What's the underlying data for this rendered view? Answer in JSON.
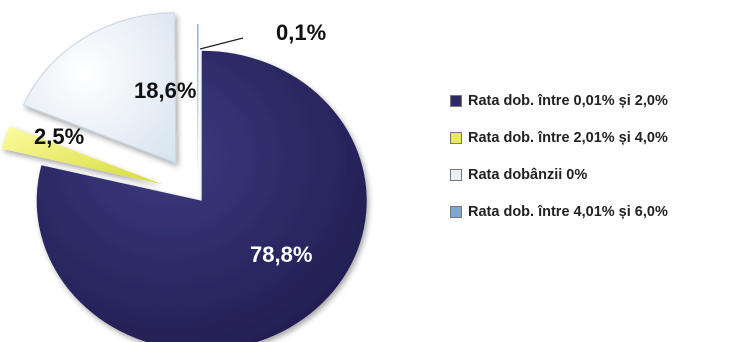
{
  "chart_data": {
    "type": "pie",
    "style": "3d-exploded",
    "slices": [
      {
        "label": "Rata dob. între 0,01% și 2,0%",
        "value": 78.8,
        "display": "78,8%",
        "color": "#2e2a66"
      },
      {
        "label": "Rata dob. între 2,01% și 4,0%",
        "value": 2.5,
        "display": "2,5%",
        "color": "#e8ea5a"
      },
      {
        "label": "Rata dobânzii 0%",
        "value": 18.6,
        "display": "18,6%",
        "color": "#e8f0f8"
      },
      {
        "label": "Rata dob. între 4,01% și 6,0%",
        "value": 0.1,
        "display": "0,1%",
        "color": "#7fa8d0"
      }
    ],
    "legend_position": "right"
  }
}
